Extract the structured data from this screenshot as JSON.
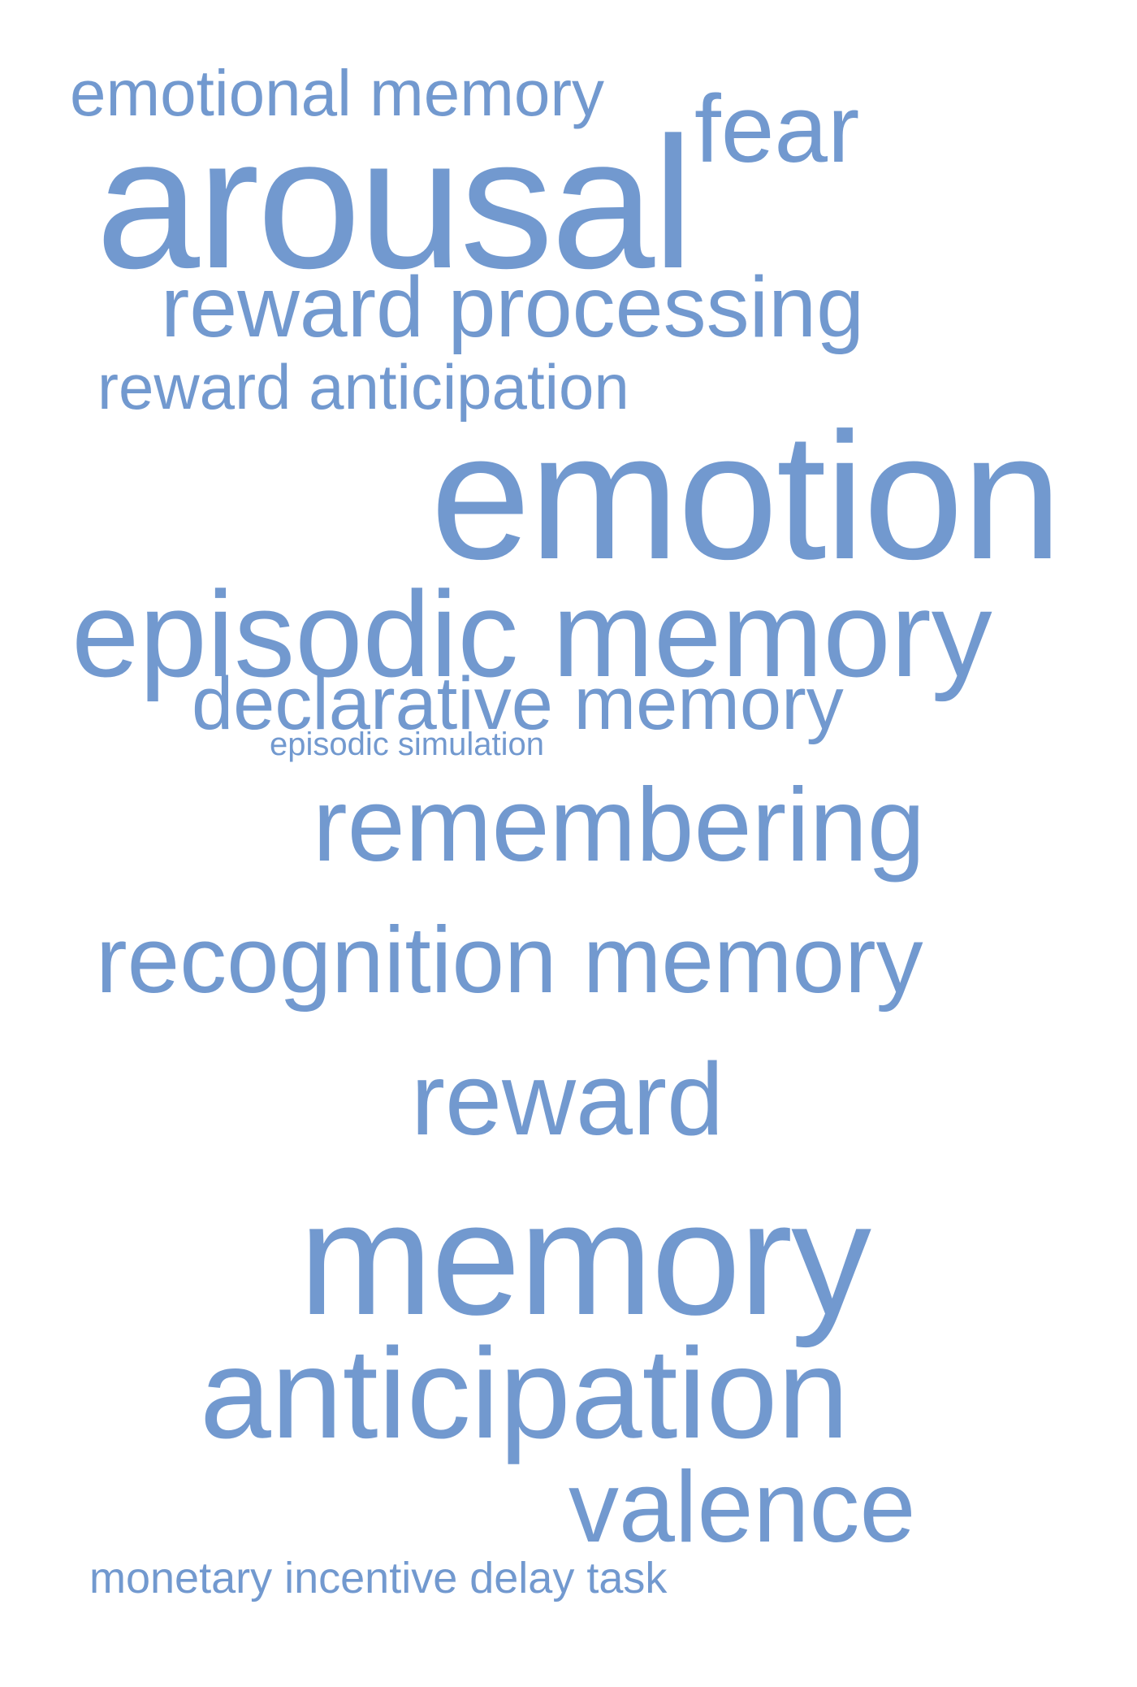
{
  "colors": {
    "background": "#ffffff",
    "word": "#7299cf"
  },
  "words": [
    {
      "text": "emotional memory"
    },
    {
      "text": "fear"
    },
    {
      "text": "arousal"
    },
    {
      "text": "reward processing"
    },
    {
      "text": "reward anticipation"
    },
    {
      "text": "emotion"
    },
    {
      "text": "episodic memory"
    },
    {
      "text": "declarative memory"
    },
    {
      "text": "episodic simulation"
    },
    {
      "text": "remembering"
    },
    {
      "text": "recognition memory"
    },
    {
      "text": "reward"
    },
    {
      "text": "memory"
    },
    {
      "text": "anticipation"
    },
    {
      "text": "valence"
    },
    {
      "text": "monetary incentive delay task"
    }
  ]
}
